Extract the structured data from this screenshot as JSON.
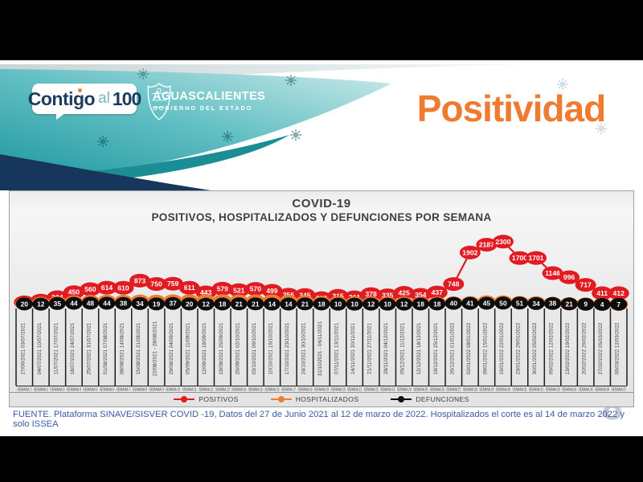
{
  "header": {
    "brand": {
      "contigo": "Contigo",
      "al": "al",
      "num": "100"
    },
    "gov": {
      "name": "AGUASCALIENTES",
      "sub": "GOBIERNO DEL ESTADO"
    },
    "page_title": "Positividad"
  },
  "chart_data": {
    "type": "line",
    "title": "COVID-19",
    "subtitle": "POSITIVOS, HOSPITALIZADOS Y DEFUNCIONES POR SEMANA",
    "x_tick_labels": [
      "27/06/2021 03/07/2021",
      "04/07/2021 10/07/2021",
      "11/07/2021 17/07/2021",
      "18/07/2021 24/07/2021",
      "25/07/2021 31/07/2021",
      "01/08/2021 07/08/2021",
      "08/08/2021 14/08/2021",
      "15/08/2021 21/08/2021",
      "22/08/2021 - 28/08/2021",
      "29/08/2021 04/09/2021",
      "05/09/2021 11/09/2021",
      "12/09/2021 18/09/2021",
      "19/09/2021 25/09/2021",
      "26/09/2021 02/10/2021",
      "03/10/2021 09/10/2021",
      "10/10/2021 16/10/2021",
      "17/10/2021 23/10/2021",
      "24/10/2021 30/10/2021",
      "31/10/2021 - 06/11/2021",
      "07/11/2021 13/11/2021",
      "14/11/2021 20/11/2021",
      "21/11/2021 27/11/2021",
      "28/11/2021 04/12/2021",
      "05/12/2021 11/12/2021",
      "12/12/2021 18/12/2021",
      "19/12/2021 25/12/2021",
      "26/12/2021 01/01/2022",
      "02/01/2022 08/01/2022",
      "09/01/2022 15/01/2022",
      "16/01/2022 22/01/2022",
      "23/01/2022 29/01/2022",
      "30/01/2022 05/02/2022",
      "06/02/2022 12/02/2022",
      "13/02/2022 19/02/2022",
      "20/02/2022 26/02/2022",
      "27/02/2022 05/03/2022",
      "06/03/2022 12/03/2022"
    ],
    "x_bottom_row_token": "SEMANA",
    "series": [
      {
        "name": "POSITIVOS",
        "color": "#e11b22",
        "values": [
          76,
          140,
          264,
          450,
          560,
          614,
          610,
          873,
          750,
          759,
          611,
          443,
          579,
          521,
          570,
          499,
          356,
          345,
          230,
          315,
          261,
          378,
          335,
          425,
          354,
          437,
          748,
          1902,
          2187,
          2300,
          1700,
          1701,
          1146,
          996,
          717,
          411,
          412
        ]
      },
      {
        "name": "HOSPITALIZADOS",
        "color": "#ef7d2e",
        "values": [
          23,
          48,
          75,
          98,
          115,
          122,
          118,
          130,
          120,
          137,
          135,
          142,
          141,
          134,
          131,
          134,
          116,
          98,
          80,
          70,
          62,
          58,
          55,
          54,
          50,
          52,
          58,
          70,
          100,
          94,
          73,
          65,
          43,
          22,
          15,
          10,
          8
        ]
      },
      {
        "name": "DEFUNCIONES",
        "color": "#0d0d0d",
        "values": [
          20,
          12,
          35,
          44,
          48,
          44,
          38,
          34,
          19,
          37,
          20,
          12,
          18,
          21,
          21,
          14,
          14,
          21,
          18,
          10,
          10,
          12,
          10,
          12,
          18,
          18,
          40,
          41,
          45,
          50,
          51,
          34,
          38,
          21,
          9,
          4,
          7
        ]
      }
    ],
    "ylim": [
      0,
      2400
    ],
    "grid": false,
    "data_labels": true,
    "legend_position": "bottom"
  },
  "footer": {
    "source": "FUENTE. Plataforma SINAVE/SISVER COVID -19, Datos del 27 de Junio 2021 al 12 de marzo de 2022.  Hospitalizados el corte es al 14 de marzo 2022 y solo ISSEA",
    "page_number": "8"
  },
  "colors": {
    "accent_orange": "#ee7b31",
    "teal": "#2aa0a5",
    "navy": "#16365c",
    "footer_blue": "#3b5aa5"
  }
}
